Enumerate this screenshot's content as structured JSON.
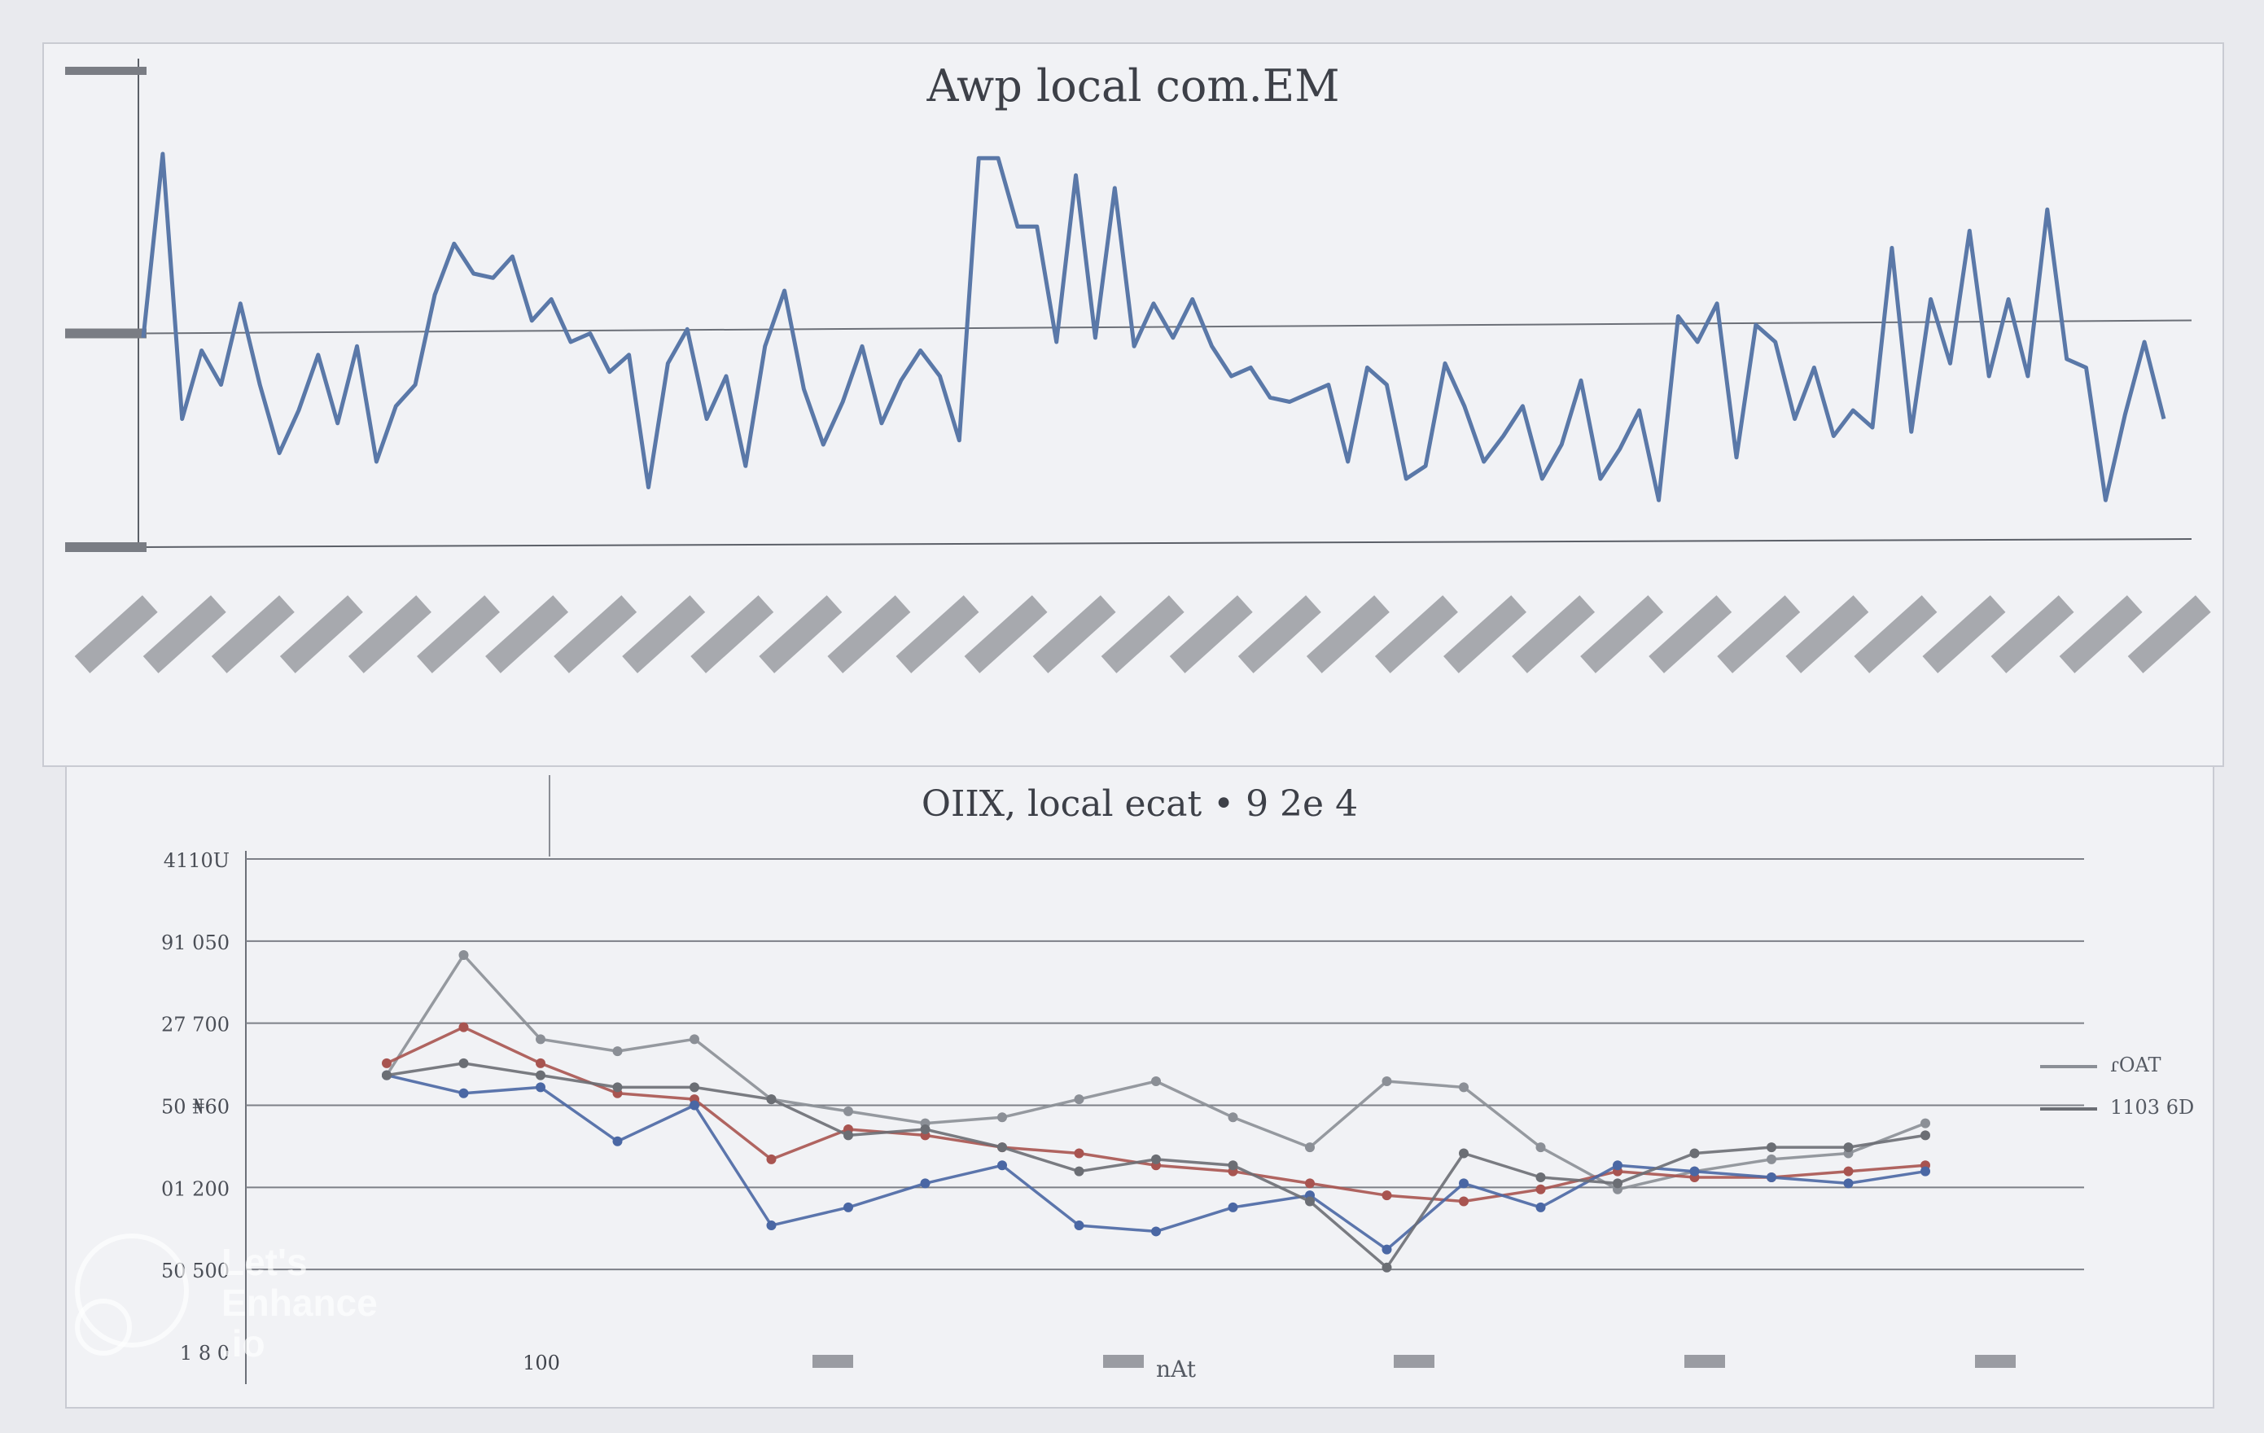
{
  "chart_data": [
    {
      "type": "line",
      "title": "Awp local com.EM",
      "xlabel": "",
      "ylabel": "",
      "grid": true,
      "ylim": [
        0,
        100
      ],
      "series": [
        {
          "color": "#5a78a8",
          "values": [
            49,
            92,
            30,
            46,
            38,
            57,
            38,
            22,
            32,
            45,
            29,
            47,
            20,
            33,
            38,
            59,
            71,
            64,
            63,
            68,
            53,
            58,
            48,
            50,
            41,
            45,
            14,
            43,
            51,
            30,
            40,
            19,
            47,
            60,
            37,
            24,
            34,
            47,
            29,
            39,
            46,
            40,
            25,
            91,
            91,
            75,
            75,
            48,
            87,
            49,
            84,
            47,
            57,
            49,
            58,
            47,
            40,
            42,
            35,
            34,
            36,
            38,
            20,
            42,
            38,
            16,
            19,
            43,
            33,
            20,
            26,
            33,
            16,
            24,
            39,
            16,
            23,
            32,
            11,
            54,
            48,
            57,
            21,
            52,
            48,
            30,
            42,
            26,
            32,
            28,
            70,
            27,
            58,
            43,
            74,
            40,
            58,
            40,
            79,
            44,
            42,
            11,
            31,
            48,
            30
          ]
        }
      ]
    },
    {
      "type": "line",
      "title": "OIIX, local ecat • 9 2e 4",
      "xlabel": "nAt",
      "ylabel": "",
      "grid": true,
      "ylim": [
        0,
        4100
      ],
      "yticks": [
        "4110U",
        "91 050",
        "27 700",
        "50 ₦60",
        "01 200",
        "50 500",
        "1 8 0"
      ],
      "xticks": [
        "100",
        "",
        "",
        "",
        "",
        ""
      ],
      "x": [
        1,
        2,
        3,
        4,
        5,
        6,
        7,
        8,
        9,
        10,
        11,
        12,
        13,
        14,
        15,
        16,
        17,
        18,
        19,
        20,
        21
      ],
      "series": [
        {
          "name": "",
          "color": "#8b8f96",
          "values": [
            2300,
            3300,
            2600,
            2500,
            2600,
            2100,
            2000,
            1900,
            1950,
            2100,
            2250,
            1950,
            1700,
            2250,
            2200,
            1700,
            1350,
            1500,
            1600,
            1650,
            1900
          ]
        },
        {
          "name": "",
          "color": "#a85450",
          "values": [
            2400,
            2700,
            2400,
            2150,
            2100,
            1600,
            1850,
            1800,
            1700,
            1650,
            1550,
            1500,
            1400,
            1300,
            1250,
            1350,
            1500,
            1450,
            1450,
            1500,
            1550
          ]
        },
        {
          "name": "",
          "color": "#4a67a4",
          "values": [
            2300,
            2150,
            2200,
            1750,
            2050,
            1050,
            1200,
            1400,
            1550,
            1050,
            1000,
            1200,
            1300,
            850,
            1400,
            1200,
            1550,
            1500,
            1450,
            1400,
            1500
          ]
        },
        {
          "name": "",
          "color": "#6b6e74",
          "values": [
            2300,
            2400,
            2300,
            2200,
            2200,
            2100,
            1800,
            1850,
            1700,
            1500,
            1600,
            1550,
            1250,
            700,
            1650,
            1450,
            1400,
            1650,
            1700,
            1700,
            1800
          ]
        }
      ],
      "legend": {
        "placement": "right",
        "entries": [
          "ɾOAT",
          "1103 6D"
        ]
      }
    }
  ],
  "watermark": {
    "line1": "Let's",
    "line2": "Enhance",
    "line3": ".io"
  }
}
